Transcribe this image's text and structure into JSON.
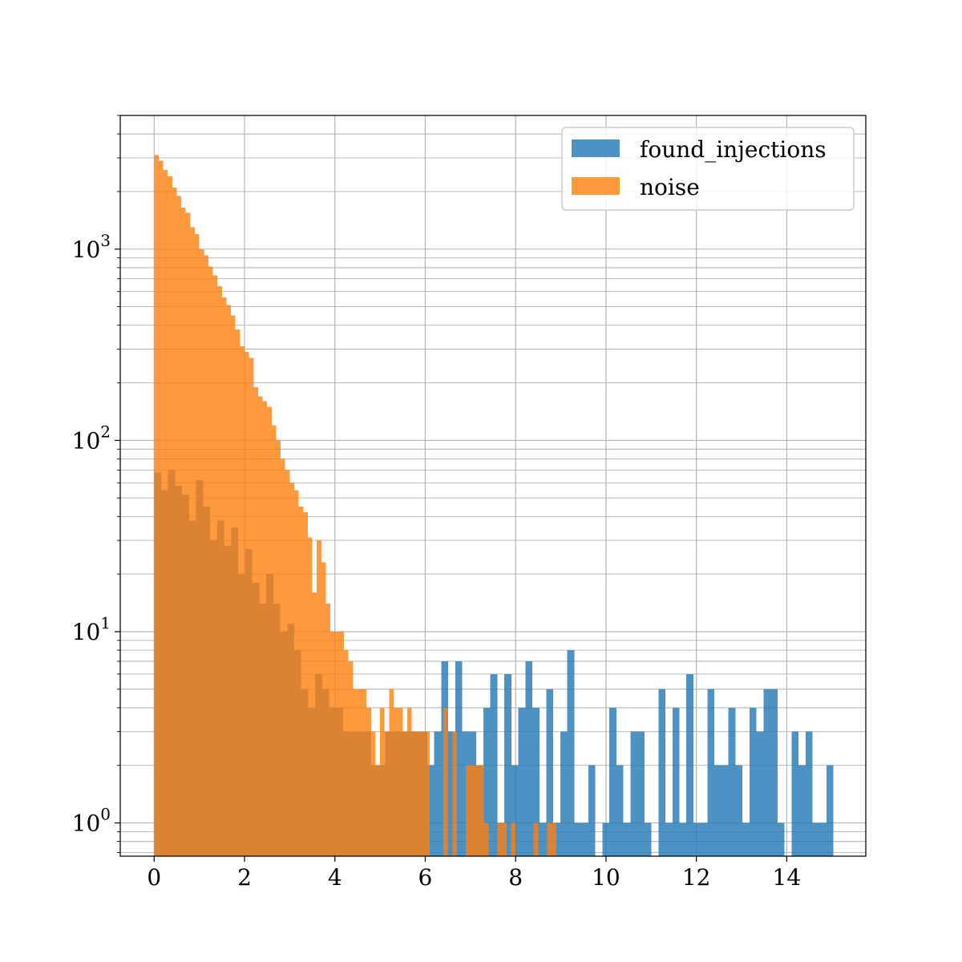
{
  "chart_data": {
    "type": "bar",
    "title": "",
    "xlabel": "",
    "ylabel": "",
    "x_scale": "linear",
    "y_scale": "log",
    "xlim": [
      -0.75,
      15.75
    ],
    "ylim": [
      0.67,
      5000
    ],
    "grid": true,
    "legend_placement": "upper right",
    "bin_width": 0.1,
    "x_ticks": [
      "0",
      "2",
      "4",
      "6",
      "8",
      "10",
      "12",
      "14"
    ],
    "y_ticks": [
      {
        "base": "10",
        "exp": "0"
      },
      {
        "base": "10",
        "exp": "1"
      },
      {
        "base": "10",
        "exp": "2"
      },
      {
        "base": "10",
        "exp": "3"
      }
    ],
    "series": [
      {
        "name": "found_injections",
        "color": "#1f77b4",
        "opacity": 0.8,
        "bin_width": 0.155,
        "bins_start": [
          0.0,
          0.155,
          0.31,
          0.465,
          0.62,
          0.775,
          0.93,
          1.085,
          1.24,
          1.395,
          1.55,
          1.705,
          1.86,
          2.015,
          2.17,
          2.325,
          2.48,
          2.635,
          2.79,
          2.945,
          3.1,
          3.255,
          3.41,
          3.565,
          3.72,
          3.875,
          4.03,
          4.185,
          4.34,
          4.495,
          4.65,
          4.805,
          4.96,
          5.115,
          5.27,
          5.425,
          5.58,
          5.735,
          5.89,
          6.045,
          6.2,
          6.355,
          6.51,
          6.665,
          6.82,
          6.975,
          7.13,
          7.285,
          7.44,
          7.595,
          7.75,
          7.905,
          8.06,
          8.215,
          8.37,
          8.525,
          8.68,
          8.835,
          8.99,
          9.145,
          9.3,
          9.455,
          9.61,
          9.765,
          9.92,
          10.075,
          10.23,
          10.385,
          10.54,
          10.695,
          10.85,
          11.005,
          11.16,
          11.315,
          11.47,
          11.625,
          11.78,
          11.935,
          12.09,
          12.245,
          12.4,
          12.555,
          12.71,
          12.865,
          13.02,
          13.175,
          13.33,
          13.485,
          13.64,
          13.795,
          13.95,
          14.105,
          14.26,
          14.415,
          14.57,
          14.725,
          14.88
        ],
        "values": [
          68,
          55,
          70,
          58,
          52,
          38,
          62,
          45,
          30,
          38,
          28,
          35,
          20,
          27,
          18,
          14,
          20,
          14,
          10,
          11,
          8,
          5,
          4,
          6,
          5,
          4,
          4,
          3,
          3,
          3,
          3,
          2,
          2,
          3,
          3,
          3,
          3,
          3,
          3,
          2,
          3,
          7,
          3,
          7,
          3,
          3,
          2,
          4,
          6,
          1,
          6,
          2,
          4,
          7,
          4,
          1,
          5,
          1,
          3,
          8,
          1,
          1,
          2,
          0,
          1,
          4,
          2,
          1,
          3,
          3,
          1,
          0,
          5,
          1,
          4,
          1,
          6,
          1,
          1,
          5,
          2,
          2,
          4,
          2,
          1,
          4,
          3,
          5,
          5,
          1,
          0,
          3,
          2,
          3,
          1,
          1,
          2
        ]
      },
      {
        "name": "noise",
        "color": "#ff7f0e",
        "opacity": 0.8,
        "bin_width": 0.1,
        "bins_start": [
          0.0,
          0.1,
          0.2,
          0.3,
          0.4,
          0.5,
          0.6,
          0.7,
          0.8,
          0.9,
          1.0,
          1.1,
          1.2,
          1.3,
          1.4,
          1.5,
          1.6,
          1.7,
          1.8,
          1.9,
          2.0,
          2.1,
          2.2,
          2.3,
          2.4,
          2.5,
          2.6,
          2.7,
          2.8,
          2.9,
          3.0,
          3.1,
          3.2,
          3.3,
          3.4,
          3.5,
          3.6,
          3.7,
          3.8,
          3.9,
          4.0,
          4.1,
          4.2,
          4.3,
          4.4,
          4.5,
          4.6,
          4.7,
          4.8,
          4.9,
          5.0,
          5.1,
          5.2,
          5.3,
          5.4,
          5.5,
          5.6,
          5.7,
          5.8,
          5.9,
          6.0,
          6.1,
          6.2,
          6.3,
          6.4,
          6.5,
          6.6,
          6.7,
          6.8,
          6.9,
          7.0,
          7.1,
          7.2,
          7.3,
          7.4,
          7.5,
          7.6,
          7.7,
          7.8,
          7.9,
          8.0,
          8.1,
          8.2,
          8.3,
          8.4,
          8.5,
          8.6,
          8.7,
          8.8,
          8.9,
          9.0
        ],
        "values": [
          3100,
          2900,
          2600,
          2400,
          2100,
          1900,
          1650,
          1550,
          1300,
          1200,
          1000,
          930,
          810,
          730,
          640,
          560,
          510,
          450,
          380,
          310,
          290,
          270,
          190,
          170,
          160,
          150,
          120,
          100,
          80,
          70,
          60,
          55,
          45,
          42,
          31,
          16,
          30,
          23,
          14,
          10,
          10,
          10,
          8,
          7,
          5,
          5,
          5,
          4,
          3,
          2,
          4,
          3,
          5,
          4,
          4,
          3,
          4,
          3,
          3,
          3,
          3,
          0,
          0,
          0,
          4,
          0,
          3,
          0,
          0,
          2,
          2,
          2,
          2,
          1,
          0,
          0,
          1,
          1,
          0,
          1,
          0,
          0,
          0,
          0,
          1,
          0,
          0,
          1,
          1,
          0,
          0
        ]
      }
    ]
  }
}
